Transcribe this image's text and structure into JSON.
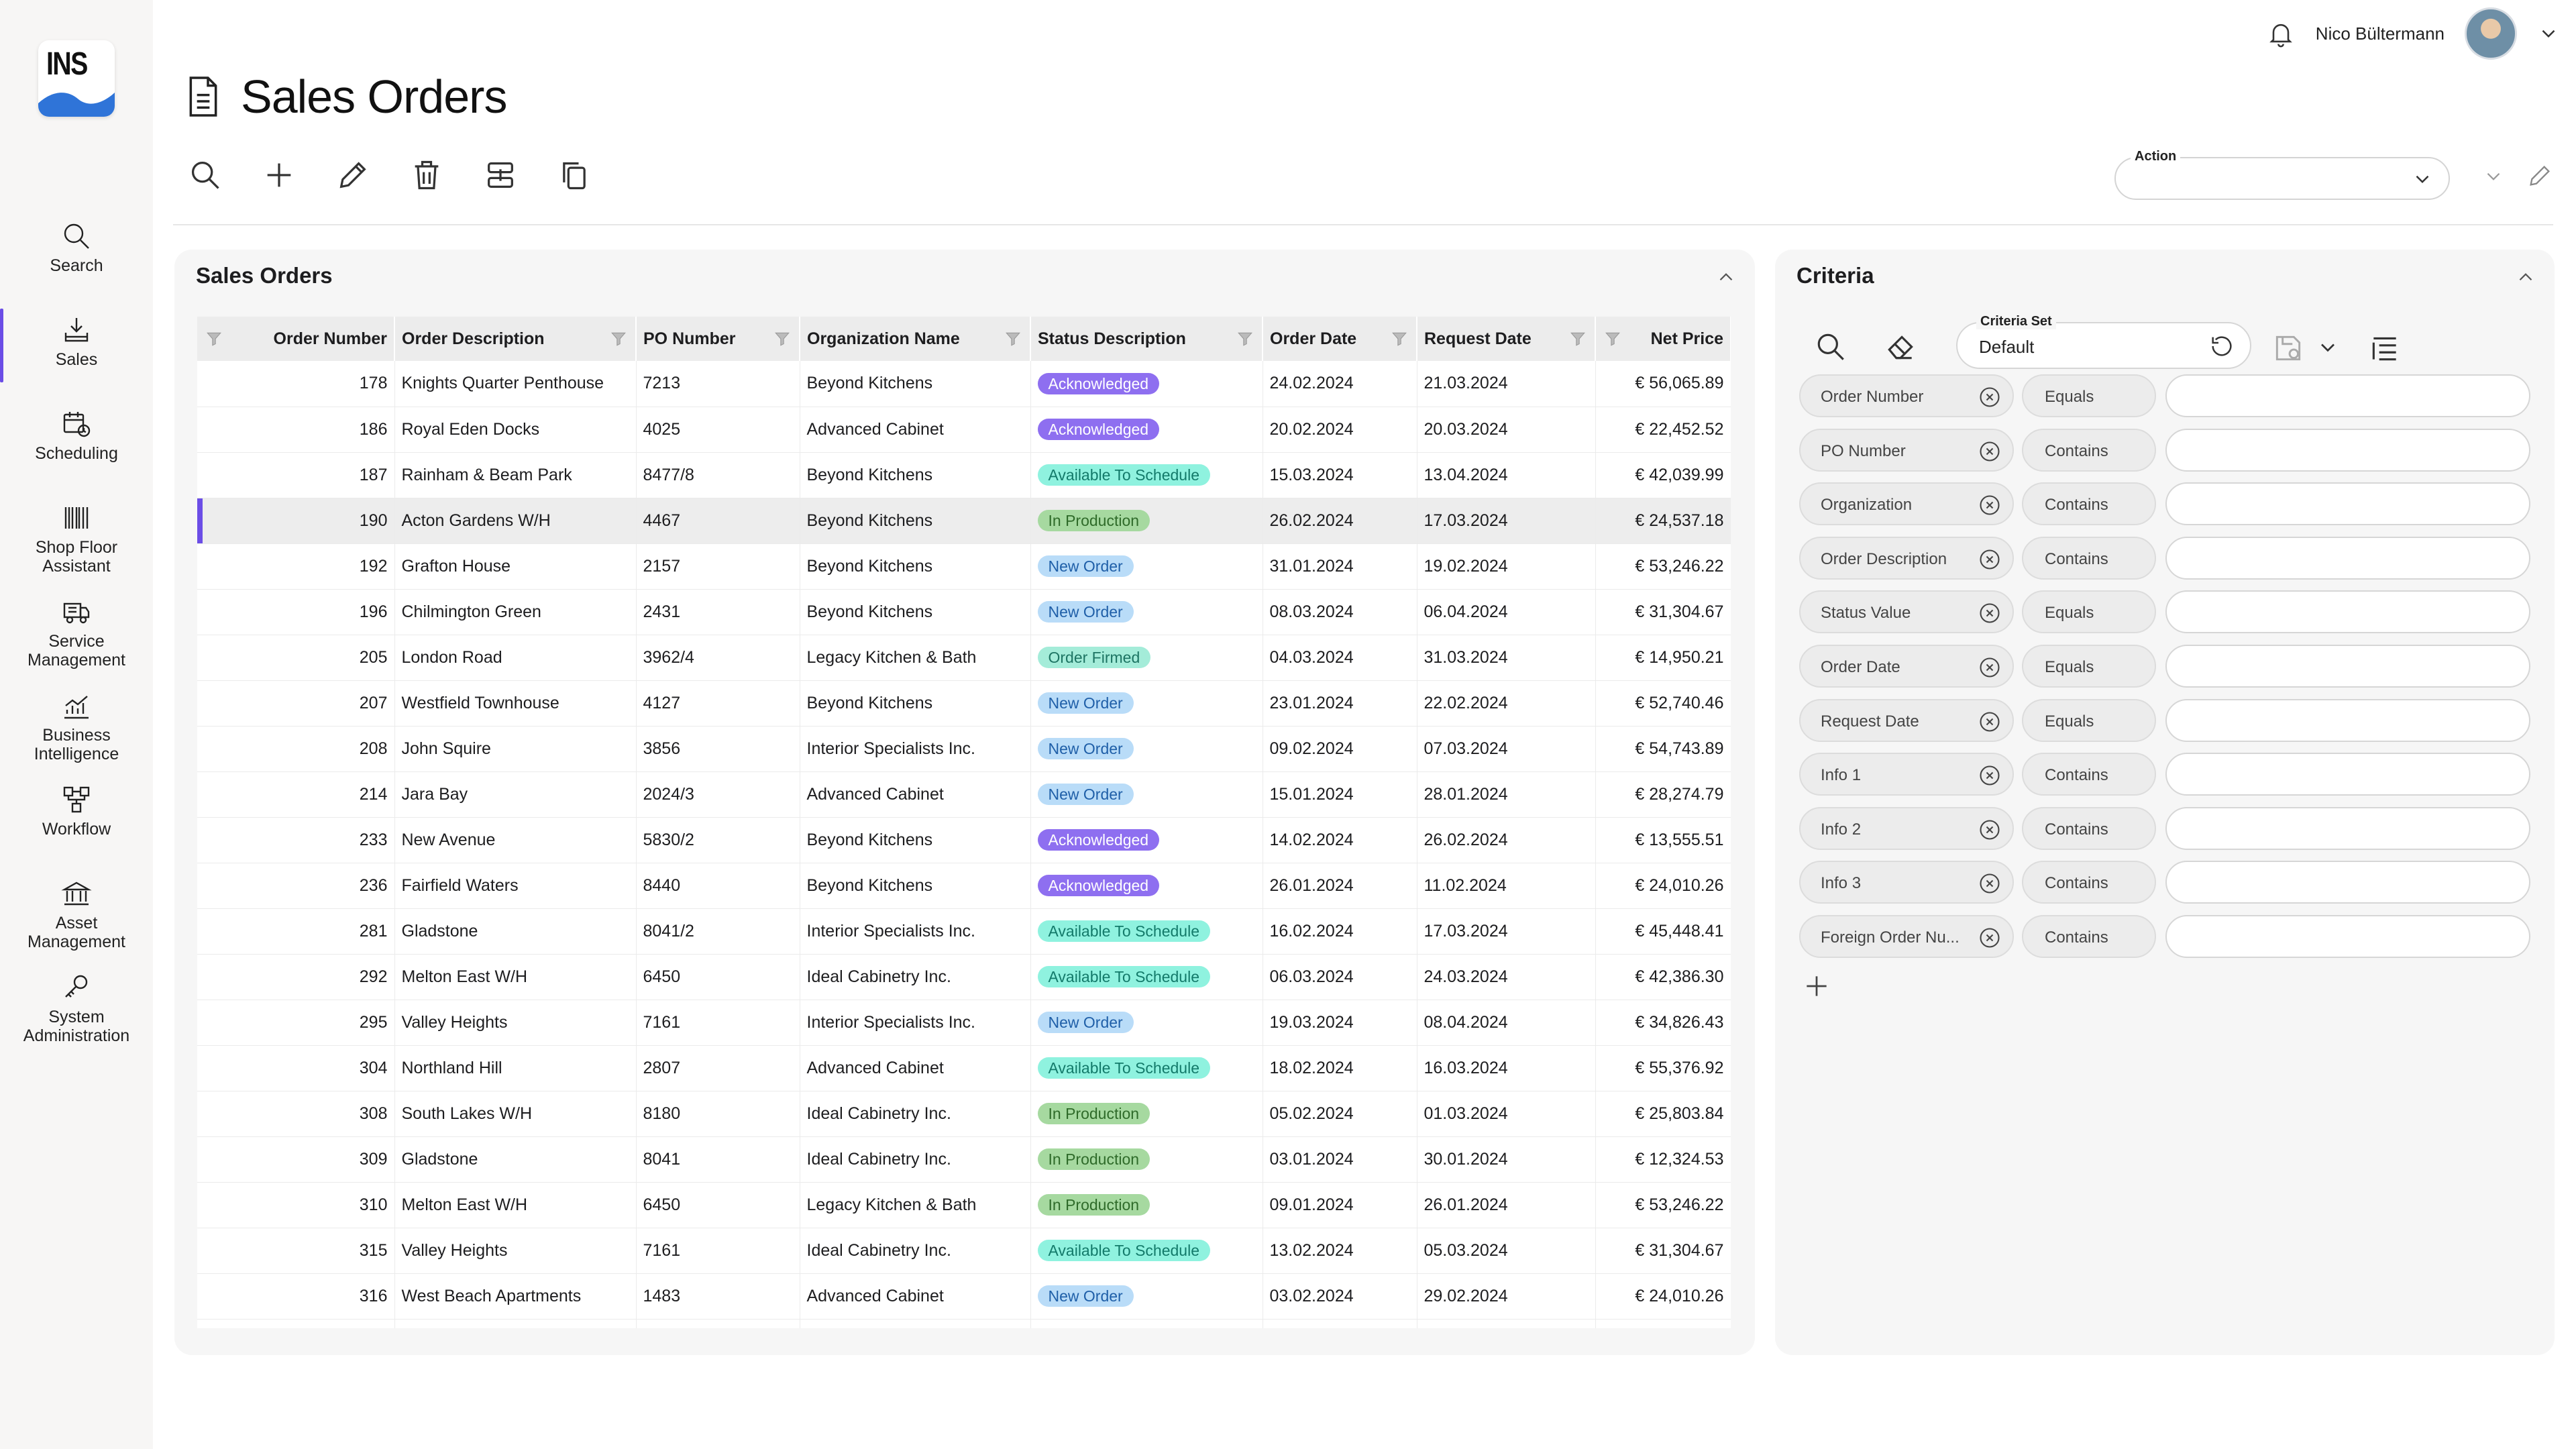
{
  "brand": {
    "logo_text": "INS",
    "accent": "#6b4de6"
  },
  "nav": [
    {
      "label": "Search",
      "icon": "search-icon"
    },
    {
      "label": "Sales",
      "icon": "download-tray-icon"
    },
    {
      "label": "Scheduling",
      "icon": "calendar-clock-icon"
    },
    {
      "label": "Shop Floor\nAssistant",
      "icon": "barcode-icon"
    },
    {
      "label": "Service\nManagement",
      "icon": "truck-icon"
    },
    {
      "label": "Business\nIntelligence",
      "icon": "chart-icon"
    },
    {
      "label": "Workflow",
      "icon": "workflow-icon"
    },
    {
      "label": "Asset\nManagement",
      "icon": "bank-icon"
    },
    {
      "label": "System\nAdministration",
      "icon": "key-icon"
    }
  ],
  "header": {
    "user_name": "Nico Bültermann",
    "title": "Sales Orders",
    "action_label": "Action"
  },
  "orders_panel": {
    "title": "Sales Orders",
    "columns": [
      "Order Number",
      "Order Description",
      "PO Number",
      "Organization Name",
      "Status Description",
      "Order Date",
      "Request Date",
      "Net Price"
    ],
    "rows": [
      [
        "178",
        "Knights Quarter Penthouse",
        "7213",
        "Beyond Kitchens",
        "Acknowledged",
        "24.02.2024",
        "21.03.2024",
        "€ 56,065.89"
      ],
      [
        "186",
        "Royal Eden Docks",
        "4025",
        "Advanced Cabinet",
        "Acknowledged",
        "20.02.2024",
        "20.03.2024",
        "€ 22,452.52"
      ],
      [
        "187",
        "Rainham & Beam Park",
        "8477/8",
        "Beyond Kitchens",
        "Available To Schedule",
        "15.03.2024",
        "13.04.2024",
        "€ 42,039.99"
      ],
      [
        "190",
        "Acton Gardens W/H",
        "4467",
        "Beyond Kitchens",
        "In Production",
        "26.02.2024",
        "17.03.2024",
        "€ 24,537.18"
      ],
      [
        "192",
        "Grafton House",
        "2157",
        "Beyond Kitchens",
        "New Order",
        "31.01.2024",
        "19.02.2024",
        "€ 53,246.22"
      ],
      [
        "196",
        "Chilmington Green",
        "2431",
        "Beyond Kitchens",
        "New Order",
        "08.03.2024",
        "06.04.2024",
        "€ 31,304.67"
      ],
      [
        "205",
        "London Road",
        "3962/4",
        "Legacy Kitchen & Bath",
        "Order Firmed",
        "04.03.2024",
        "31.03.2024",
        "€ 14,950.21"
      ],
      [
        "207",
        "Westfield Townhouse",
        "4127",
        "Beyond Kitchens",
        "New Order",
        "23.01.2024",
        "22.02.2024",
        "€ 52,740.46"
      ],
      [
        "208",
        "John Squire",
        "3856",
        "Interior Specialists Inc.",
        "New Order",
        "09.02.2024",
        "07.03.2024",
        "€ 54,743.89"
      ],
      [
        "214",
        "Jara Bay",
        "2024/3",
        "Advanced Cabinet",
        "New Order",
        "15.01.2024",
        "28.01.2024",
        "€ 28,274.79"
      ],
      [
        "233",
        "New Avenue",
        "5830/2",
        "Beyond Kitchens",
        "Acknowledged",
        "14.02.2024",
        "26.02.2024",
        "€ 13,555.51"
      ],
      [
        "236",
        "Fairfield Waters",
        "8440",
        "Beyond Kitchens",
        "Acknowledged",
        "26.01.2024",
        "11.02.2024",
        "€ 24,010.26"
      ],
      [
        "281",
        "Gladstone",
        "8041/2",
        "Interior Specialists Inc.",
        "Available To Schedule",
        "16.02.2024",
        "17.03.2024",
        "€ 45,448.41"
      ],
      [
        "292",
        "Melton East W/H",
        "6450",
        "Ideal Cabinetry Inc.",
        "Available To Schedule",
        "06.03.2024",
        "24.03.2024",
        "€ 42,386.30"
      ],
      [
        "295",
        "Valley Heights",
        "7161",
        "Interior Specialists Inc.",
        "New Order",
        "19.03.2024",
        "08.04.2024",
        "€ 34,826.43"
      ],
      [
        "304",
        "Northland Hill",
        "2807",
        "Advanced Cabinet",
        "Available To Schedule",
        "18.02.2024",
        "16.03.2024",
        "€ 55,376.92"
      ],
      [
        "308",
        "South Lakes W/H",
        "8180",
        "Ideal Cabinetry Inc.",
        "In Production",
        "05.02.2024",
        "01.03.2024",
        "€ 25,803.84"
      ],
      [
        "309",
        "Gladstone",
        "8041",
        "Ideal Cabinetry Inc.",
        "In Production",
        "03.01.2024",
        "30.01.2024",
        "€ 12,324.53"
      ],
      [
        "310",
        "Melton East W/H",
        "6450",
        "Legacy Kitchen & Bath",
        "In Production",
        "09.01.2024",
        "26.01.2024",
        "€ 53,246.22"
      ],
      [
        "315",
        "Valley Heights",
        "7161",
        "Ideal Cabinetry Inc.",
        "Available To Schedule",
        "13.02.2024",
        "05.03.2024",
        "€ 31,304.67"
      ],
      [
        "316",
        "West Beach Apartments",
        "1483",
        "Advanced Cabinet",
        "New Order",
        "03.02.2024",
        "29.02.2024",
        "€ 24,010.26"
      ]
    ],
    "selected_order": "190",
    "status_colors": {
      "Acknowledged": {
        "bg": "#8e6ff0",
        "fg": "#ffffff"
      },
      "Available To Schedule": {
        "bg": "#8ff2df",
        "fg": "#137a6a"
      },
      "In Production": {
        "bg": "#a6d9a0",
        "fg": "#2f6b2a"
      },
      "New Order": {
        "bg": "#b9dcf8",
        "fg": "#1f5fa8"
      },
      "Order Firmed": {
        "bg": "#a4ecd9",
        "fg": "#1d7463"
      }
    }
  },
  "criteria": {
    "title": "Criteria",
    "set_label": "Criteria Set",
    "set_value": "Default",
    "rows": [
      {
        "field": "Order Number",
        "op": "Equals"
      },
      {
        "field": "PO Number",
        "op": "Contains"
      },
      {
        "field": "Organization",
        "op": "Contains"
      },
      {
        "field": "Order Description",
        "op": "Contains"
      },
      {
        "field": "Status Value",
        "op": "Equals"
      },
      {
        "field": "Order Date",
        "op": "Equals"
      },
      {
        "field": "Request Date",
        "op": "Equals"
      },
      {
        "field": "Info 1",
        "op": "Contains"
      },
      {
        "field": "Info 2",
        "op": "Contains"
      },
      {
        "field": "Info 3",
        "op": "Contains"
      },
      {
        "field": "Foreign Order Nu...",
        "op": "Contains"
      }
    ]
  }
}
